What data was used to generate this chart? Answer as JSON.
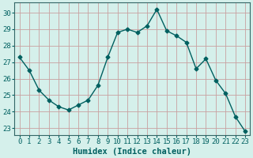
{
  "x": [
    0,
    1,
    2,
    3,
    4,
    5,
    6,
    7,
    8,
    9,
    10,
    11,
    12,
    13,
    14,
    15,
    16,
    17,
    18,
    19,
    20,
    21,
    22,
    23
  ],
  "y": [
    27.3,
    26.5,
    25.3,
    24.7,
    24.3,
    24.1,
    24.4,
    24.7,
    25.6,
    27.3,
    28.8,
    29.0,
    28.8,
    29.2,
    30.2,
    28.9,
    28.6,
    28.2,
    26.6,
    27.2,
    25.9,
    25.1,
    23.7,
    22.8
  ],
  "line_color": "#006060",
  "marker": "D",
  "marker_size": 2.5,
  "bg_color": "#d5f0eb",
  "grid_color": "#c8a0a0",
  "xlabel": "Humidex (Indice chaleur)",
  "ylim": [
    22.6,
    30.6
  ],
  "xlim": [
    -0.5,
    23.5
  ],
  "yticks": [
    23,
    24,
    25,
    26,
    27,
    28,
    29,
    30
  ],
  "xticks": [
    0,
    1,
    2,
    3,
    4,
    5,
    6,
    7,
    8,
    9,
    10,
    11,
    12,
    13,
    14,
    15,
    16,
    17,
    18,
    19,
    20,
    21,
    22,
    23
  ],
  "tick_fontsize": 6.5,
  "xlabel_fontsize": 7.5,
  "spine_color": "#336666",
  "line_width": 1.0
}
